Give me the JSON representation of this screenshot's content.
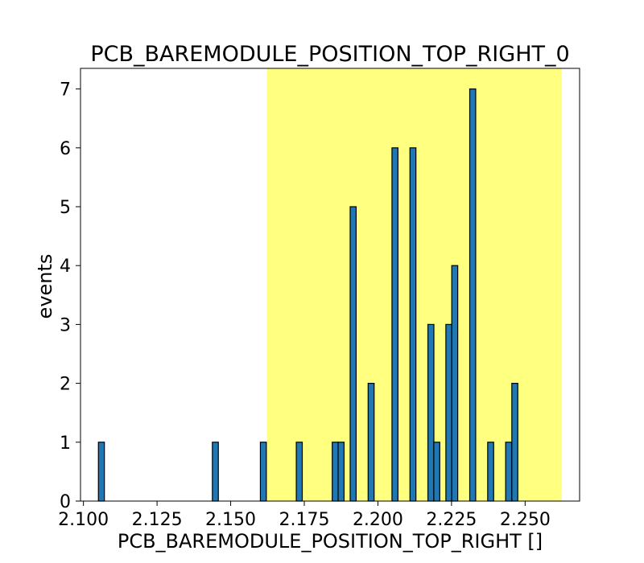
{
  "chart_data": {
    "type": "bar",
    "title": "PCB_BAREMODULE_POSITION_TOP_RIGHT_0",
    "xlabel": "PCB_BAREMODULE_POSITION_TOP_RIGHT []",
    "ylabel": "events",
    "xlim": [
      2.099,
      2.2685
    ],
    "ylim": [
      0,
      7.35
    ],
    "xticks": [
      2.1,
      2.125,
      2.15,
      2.175,
      2.2,
      2.225,
      2.25
    ],
    "xtick_labels": [
      "2.100",
      "2.125",
      "2.150",
      "2.175",
      "2.200",
      "2.225",
      "2.250"
    ],
    "yticks": [
      0,
      1,
      2,
      3,
      4,
      5,
      6,
      7
    ],
    "ytick_labels": [
      "0",
      "1",
      "2",
      "3",
      "4",
      "5",
      "6",
      "7"
    ],
    "band": {
      "x_start": 2.1623,
      "x_end": 2.2625,
      "color": "#ffff80"
    },
    "bar_color": "#1f77b4",
    "bar_edge_color": "#000000",
    "bin_width": 0.00203,
    "bins": [
      {
        "x": 2.1061,
        "count": 1
      },
      {
        "x": 2.1448,
        "count": 1
      },
      {
        "x": 2.1611,
        "count": 1
      },
      {
        "x": 2.1733,
        "count": 1
      },
      {
        "x": 2.1855,
        "count": 1
      },
      {
        "x": 2.1875,
        "count": 1
      },
      {
        "x": 2.1916,
        "count": 5
      },
      {
        "x": 2.1977,
        "count": 2
      },
      {
        "x": 2.2058,
        "count": 6
      },
      {
        "x": 2.2119,
        "count": 6
      },
      {
        "x": 2.218,
        "count": 3
      },
      {
        "x": 2.22,
        "count": 1
      },
      {
        "x": 2.2241,
        "count": 3
      },
      {
        "x": 2.2261,
        "count": 4
      },
      {
        "x": 2.2322,
        "count": 7
      },
      {
        "x": 2.2383,
        "count": 1
      },
      {
        "x": 2.2444,
        "count": 1
      },
      {
        "x": 2.2465,
        "count": 2
      }
    ]
  }
}
